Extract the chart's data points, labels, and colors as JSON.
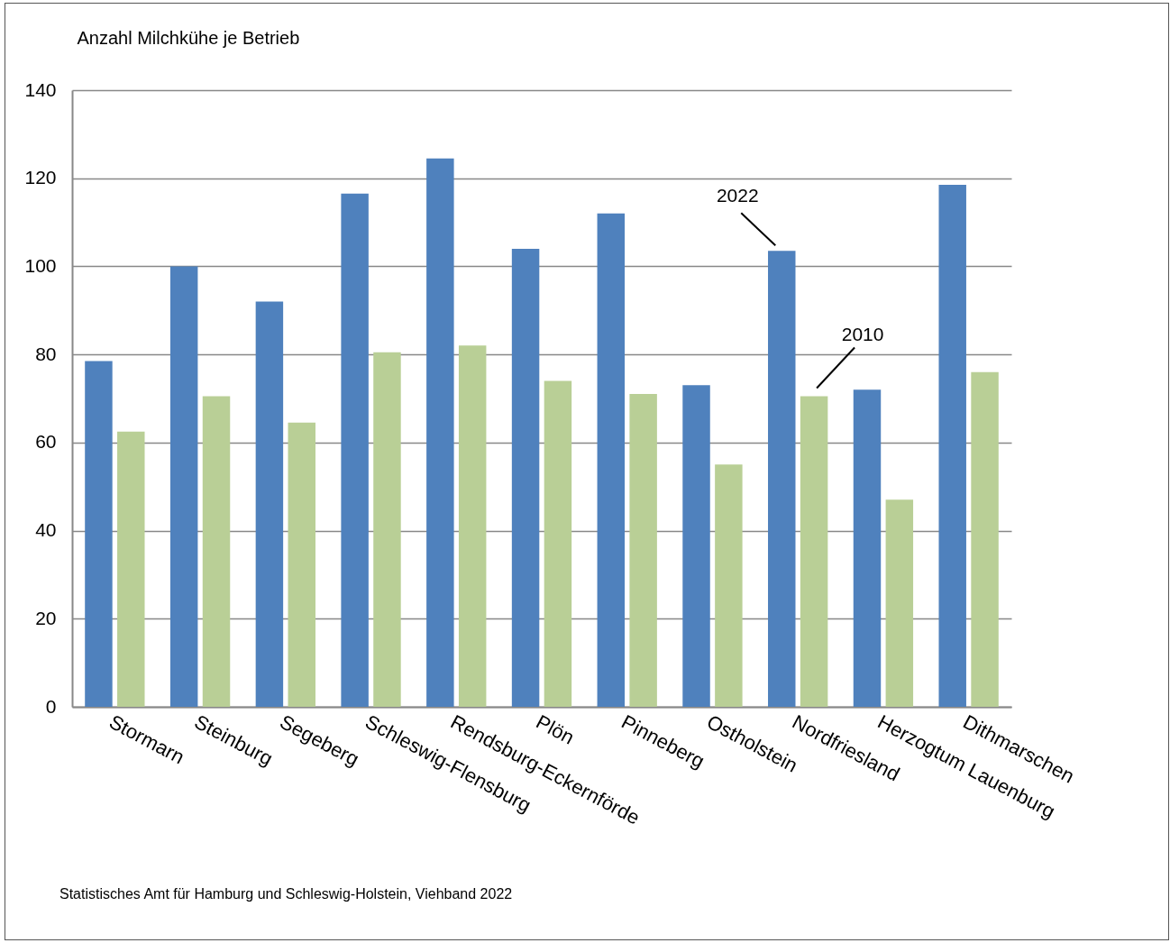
{
  "chart_data": {
    "type": "bar",
    "ylabel": "Anzahl Milchkühe je Betrieb",
    "categories": [
      "Stormarn",
      "Steinburg",
      "Segeberg",
      "Schleswig-Flensburg",
      "Rendsburg-Eckernförde",
      "Plön",
      "Pinneberg",
      "Ostholstein",
      "Nordfriesland",
      "Herzogtum Lauenburg",
      "Dithmarschen"
    ],
    "series": [
      {
        "name": "2022",
        "color": "#4f81bd",
        "values": [
          78.5,
          100,
          92,
          116.5,
          124.5,
          104,
          112,
          73,
          103.5,
          72,
          118.5
        ]
      },
      {
        "name": "2010",
        "color": "#b9cf96",
        "values": [
          62.5,
          70.5,
          64.5,
          80.5,
          82,
          74,
          71,
          55,
          70.5,
          47,
          76
        ]
      }
    ],
    "ylim": [
      0,
      140
    ],
    "yticks": [
      0,
      20,
      40,
      60,
      80,
      100,
      120,
      140
    ],
    "grid": "y",
    "legend": false,
    "annotations": [
      "Statistisches Amt für Hamburg und Schleswig-Holstein,  Viehband 2022"
    ]
  }
}
